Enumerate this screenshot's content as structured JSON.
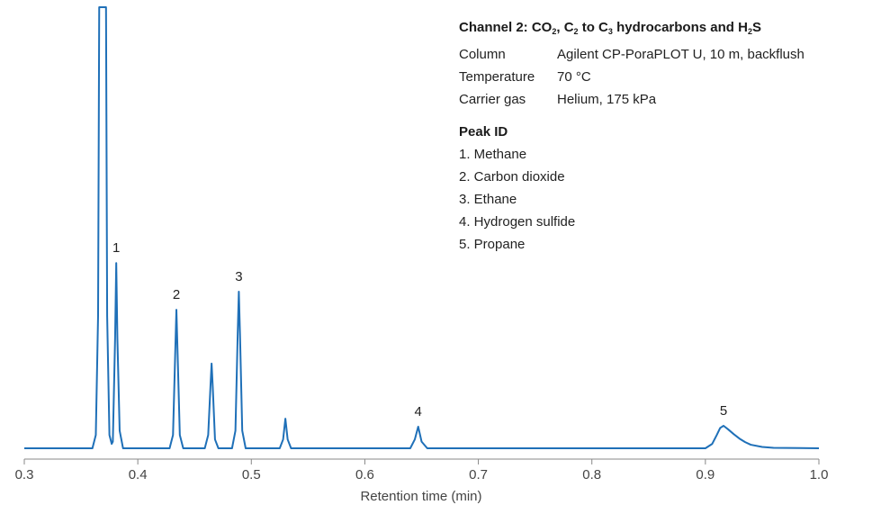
{
  "chart_data": {
    "type": "line",
    "x_label": "Retention time (min)",
    "color": "#1f70b8",
    "x": [
      0.3,
      0.36,
      0.363,
      0.365,
      0.366,
      0.372,
      0.373,
      0.375,
      0.377,
      0.378,
      0.38,
      0.381,
      0.382,
      0.384,
      0.387,
      0.428,
      0.431,
      0.433,
      0.434,
      0.435,
      0.437,
      0.44,
      0.459,
      0.462,
      0.464,
      0.465,
      0.466,
      0.468,
      0.471,
      0.483,
      0.486,
      0.488,
      0.489,
      0.49,
      0.492,
      0.495,
      0.525,
      0.528,
      0.53,
      0.532,
      0.535,
      0.64,
      0.644,
      0.647,
      0.65,
      0.655,
      0.9,
      0.906,
      0.91,
      0.913,
      0.916,
      0.92,
      0.925,
      0.93,
      0.935,
      0.94,
      0.95,
      0.96,
      1.0
    ],
    "values": [
      0,
      0,
      3,
      30,
      100,
      100,
      30,
      3,
      1,
      1.5,
      25,
      42,
      25,
      4,
      0,
      0,
      3,
      22,
      31.4,
      22,
      3,
      0,
      0,
      3,
      14,
      19.2,
      14,
      2,
      0,
      0,
      4,
      26,
      35.5,
      26,
      4,
      0,
      0,
      2,
      6.7,
      2,
      0,
      0,
      2,
      4.9,
      1.5,
      0,
      0,
      1,
      3,
      4.6,
      5.1,
      4.3,
      3.2,
      2.2,
      1.4,
      0.8,
      0.3,
      0.1,
      0
    ],
    "xlim": [
      0.3,
      1.0
    ],
    "ylim": [
      0,
      100
    ],
    "xticks": [
      0.3,
      0.4,
      0.5,
      0.6,
      0.7,
      0.8,
      0.9,
      {
        "value": 1.0,
        "label": "1.0"
      }
    ],
    "annotations": [
      {
        "text": "1",
        "x": 0.381
      },
      {
        "text": "2",
        "x": 0.434
      },
      {
        "text": "3",
        "x": 0.489
      },
      {
        "text": "4",
        "x": 0.647
      },
      {
        "text": "5",
        "x": 0.916
      }
    ],
    "info": {
      "title_parts": [
        "Channel 2: CO",
        "2",
        ", C",
        "2",
        " to C",
        "3",
        " hydrocarbons and H",
        "2",
        "S"
      ],
      "rows": [
        [
          "Column",
          "Agilent CP-PoraPLOT U, 10 m, backflush"
        ],
        [
          "Temperature",
          "70 °C"
        ],
        [
          "Carrier gas",
          "Helium, 175 kPa"
        ]
      ],
      "peak_title": "Peak ID",
      "peaks": [
        "1. Methane",
        "2. Carbon dioxide",
        "3. Ethane",
        "4. Hydrogen sulfide",
        "5. Propane"
      ]
    }
  }
}
